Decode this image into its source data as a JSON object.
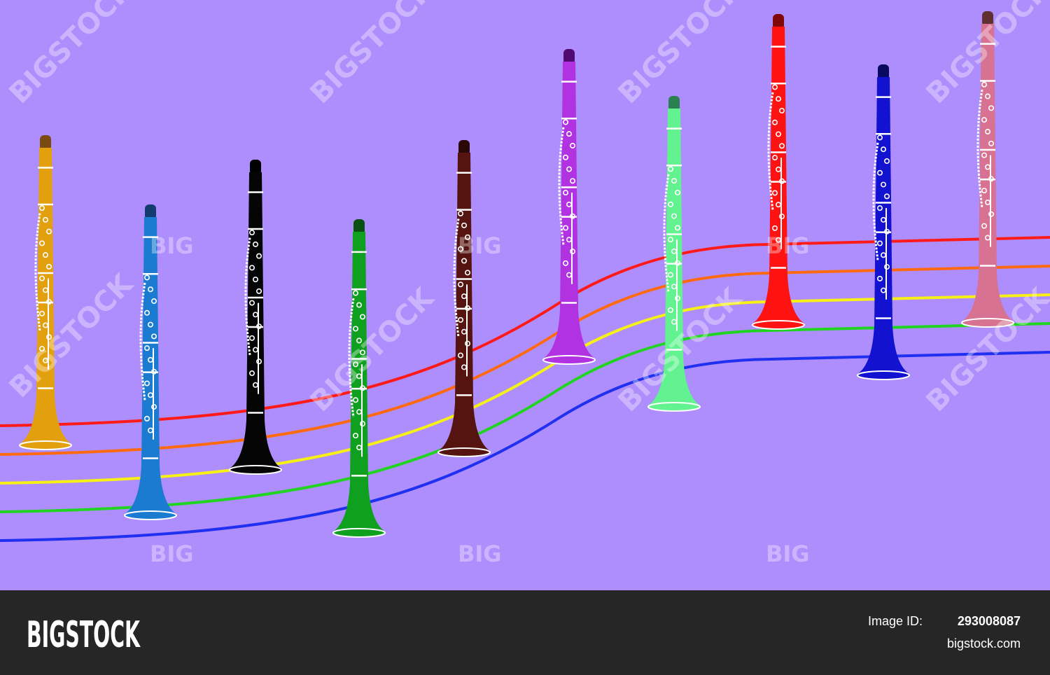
{
  "watermark": {
    "large": "BIGSTOCK",
    "small": "BIG"
  },
  "footer": {
    "logo": "BIGSTOCK",
    "image_id_label": "Image ID:",
    "image_id": "293008087",
    "site": "bigstock.com"
  }
}
